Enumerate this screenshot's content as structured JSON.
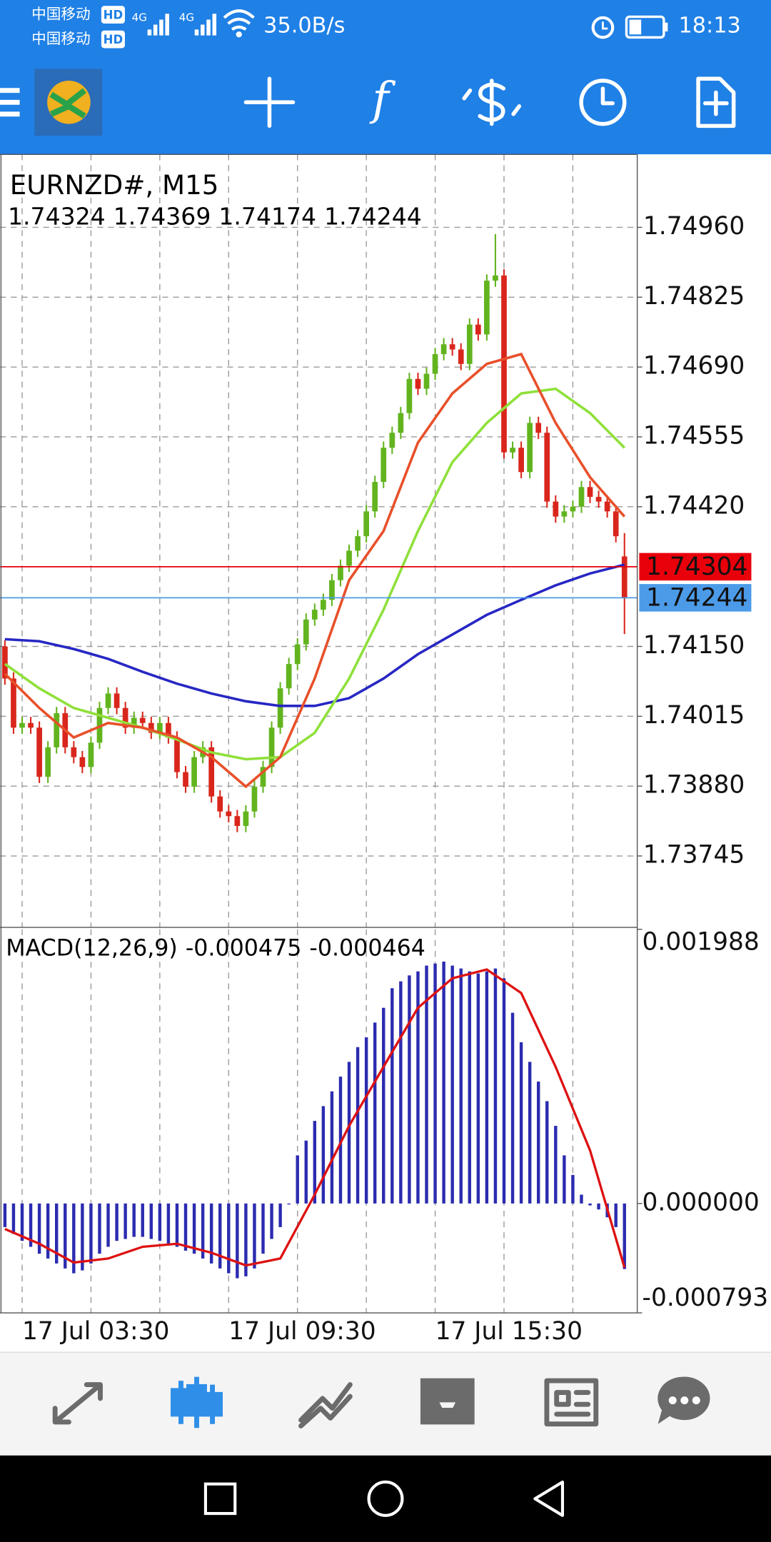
{
  "status_bar": {
    "carriers": [
      "中国移动",
      "中国移动"
    ],
    "badges": [
      "HD",
      "HD"
    ],
    "networks": [
      "4G",
      "4G"
    ],
    "speed": "35.0B/s",
    "time": "18:13"
  },
  "toolbar": {
    "indicator_icon": "f"
  },
  "chart_data": [
    {
      "type": "candlestick",
      "title": "EURNZD#, M15",
      "categories": [
        null,
        null,
        "17 Jul 03:30",
        null,
        null,
        null,
        null,
        null,
        null,
        null,
        null,
        null,
        null,
        null,
        null,
        null,
        null,
        null,
        null,
        null,
        null,
        null,
        null,
        null,
        null,
        null,
        "17 Jul 09:30",
        null,
        null,
        null,
        null,
        null,
        null,
        null,
        null,
        null,
        null,
        null,
        null,
        null,
        null,
        null,
        null,
        null,
        null,
        null,
        null,
        null,
        null,
        null,
        "17 Jul 15:30",
        null,
        null,
        null,
        null,
        null,
        null,
        null,
        null,
        null,
        null,
        null,
        null,
        null,
        null,
        null,
        null,
        null,
        null,
        null,
        null,
        null,
        null
      ],
      "open": [
        1.7415,
        1.74088,
        1.73993,
        1.74002,
        1.73993,
        1.73898,
        1.73955,
        1.74021,
        1.73955,
        1.73936,
        1.73917,
        1.73964,
        1.74031,
        1.74059,
        1.74031,
        1.73993,
        1.74012,
        1.74002,
        1.73983,
        1.74002,
        1.73974,
        1.73907,
        1.73879,
        1.73936,
        1.73955,
        1.7386,
        1.73831,
        1.73822,
        1.73803,
        1.73831,
        1.73879,
        1.73917,
        1.73993,
        1.74069,
        1.74116,
        1.74154,
        1.74202,
        1.74221,
        1.7424,
        1.74278,
        1.74306,
        1.74335,
        1.74363,
        1.74411,
        1.74468,
        1.74534,
        1.74563,
        1.74601,
        1.74667,
        1.74648,
        1.74677,
        1.74715,
        1.74734,
        1.74724,
        1.74696,
        1.74772,
        1.74753,
        1.74857,
        1.74867,
        1.74525,
        1.74534,
        1.74487,
        1.74582,
        1.74563,
        1.7443,
        1.74401,
        1.74411,
        1.7442,
        1.74458,
        1.74439,
        1.7443,
        1.74411,
        1.74324
      ],
      "high": [
        1.74162,
        1.741,
        1.74014,
        1.74014,
        1.74005,
        1.73967,
        1.74033,
        1.74033,
        1.73967,
        1.73948,
        1.73976,
        1.74043,
        1.74071,
        1.74071,
        1.74043,
        1.74024,
        1.74024,
        1.74014,
        1.74014,
        1.74014,
        1.73986,
        1.73919,
        1.73948,
        1.73967,
        1.73967,
        1.73872,
        1.73843,
        1.73834,
        1.73843,
        1.73891,
        1.73929,
        1.74005,
        1.74081,
        1.74128,
        1.74166,
        1.74214,
        1.74233,
        1.74252,
        1.7429,
        1.74318,
        1.74347,
        1.74375,
        1.74423,
        1.7448,
        1.74546,
        1.74575,
        1.74613,
        1.74679,
        1.74679,
        1.74689,
        1.74727,
        1.74746,
        1.74746,
        1.74736,
        1.74784,
        1.74784,
        1.74869,
        1.74947,
        1.74879,
        1.74546,
        1.74546,
        1.74594,
        1.74594,
        1.74575,
        1.74442,
        1.74423,
        1.74432,
        1.7447,
        1.7447,
        1.74451,
        1.74442,
        1.74423,
        1.74369
      ],
      "low": [
        1.74076,
        1.73981,
        1.73981,
        1.73981,
        1.73886,
        1.73886,
        1.73943,
        1.73943,
        1.73924,
        1.73905,
        1.73905,
        1.73952,
        1.74019,
        1.74019,
        1.73981,
        1.73981,
        1.7399,
        1.73971,
        1.73971,
        1.73962,
        1.73895,
        1.73867,
        1.73867,
        1.73924,
        1.73848,
        1.73819,
        1.7381,
        1.73791,
        1.73791,
        1.73819,
        1.73867,
        1.73905,
        1.73981,
        1.74057,
        1.74104,
        1.74142,
        1.7419,
        1.74209,
        1.74228,
        1.74266,
        1.74294,
        1.74323,
        1.74351,
        1.74399,
        1.74456,
        1.74522,
        1.74551,
        1.74589,
        1.74636,
        1.74636,
        1.74665,
        1.74703,
        1.74712,
        1.74684,
        1.74684,
        1.74741,
        1.74741,
        1.74845,
        1.74513,
        1.74513,
        1.74475,
        1.74475,
        1.74551,
        1.74418,
        1.74389,
        1.74389,
        1.74399,
        1.74408,
        1.74427,
        1.74418,
        1.74399,
        1.74351,
        1.74174
      ],
      "close": [
        1.74088,
        1.73993,
        1.74002,
        1.73993,
        1.73898,
        1.73955,
        1.74021,
        1.73955,
        1.73936,
        1.73917,
        1.73964,
        1.74031,
        1.74059,
        1.74031,
        1.73993,
        1.74012,
        1.74002,
        1.73983,
        1.74002,
        1.73974,
        1.73907,
        1.73879,
        1.73936,
        1.73955,
        1.7386,
        1.73831,
        1.73822,
        1.73803,
        1.73831,
        1.73879,
        1.73917,
        1.73993,
        1.74069,
        1.74116,
        1.74154,
        1.74202,
        1.74221,
        1.7424,
        1.74278,
        1.74306,
        1.74335,
        1.74363,
        1.74411,
        1.74468,
        1.74534,
        1.74563,
        1.74601,
        1.74667,
        1.74648,
        1.74677,
        1.74715,
        1.74734,
        1.74724,
        1.74696,
        1.74772,
        1.74753,
        1.74857,
        1.74867,
        1.74525,
        1.74534,
        1.74487,
        1.74582,
        1.74563,
        1.7443,
        1.74401,
        1.74411,
        1.7442,
        1.74458,
        1.74439,
        1.7443,
        1.74411,
        1.74363,
        1.74244
      ],
      "up_color": "#62b41e",
      "down_color": "#d9261c",
      "series": [
        {
          "color": "#2727c4",
          "x": [
            0,
            4,
            8,
            12,
            16,
            20,
            24,
            28,
            32,
            36,
            40,
            44,
            48,
            52,
            56,
            60,
            64,
            68,
            72
          ],
          "values": [
            1.74164,
            1.7416,
            1.74145,
            1.74126,
            1.74101,
            1.74078,
            1.74059,
            1.74044,
            1.74035,
            1.74035,
            1.7405,
            1.74088,
            1.74135,
            1.74173,
            1.74211,
            1.7424,
            1.74268,
            1.74291,
            1.74308
          ]
        },
        {
          "color": "#8fe03a",
          "x": [
            0,
            4,
            8,
            12,
            16,
            20,
            24,
            28,
            32,
            36,
            40,
            44,
            48,
            52,
            56,
            60,
            64,
            68,
            72
          ],
          "values": [
            1.74116,
            1.74069,
            1.74031,
            1.74012,
            1.73993,
            1.7397,
            1.73945,
            1.73932,
            1.73936,
            1.73983,
            1.74088,
            1.74221,
            1.74373,
            1.74506,
            1.74582,
            1.74639,
            1.74648,
            1.74601,
            1.74534
          ]
        },
        {
          "color": "#e8502a",
          "x": [
            0,
            4,
            8,
            12,
            16,
            20,
            24,
            28,
            32,
            36,
            40,
            44,
            48,
            52,
            56,
            60,
            64,
            68,
            72
          ],
          "values": [
            1.74097,
            1.74031,
            1.73974,
            1.74002,
            1.73993,
            1.73974,
            1.73936,
            1.73879,
            1.73936,
            1.74088,
            1.74278,
            1.74373,
            1.74544,
            1.74639,
            1.74696,
            1.74715,
            1.74582,
            1.74477,
            1.74401
          ]
        }
      ],
      "price_lines": [
        {
          "value": 1.74304,
          "color": "#e8000b"
        },
        {
          "value": 1.74244,
          "color": "#4c9be8"
        }
      ],
      "ylim": [
        1.73607,
        1.75101
      ],
      "yticks": [
        {
          "value": 1.7496,
          "label": "1.74960"
        },
        1.74825,
        {
          "value": 1.7469,
          "label": "1.74690"
        },
        1.74555,
        {
          "value": 1.7442,
          "label": "1.74420"
        },
        {
          "value": 1.7415,
          "label": "1.74150"
        },
        {
          "value": 1.74015,
          "label": "1.74015"
        },
        {
          "value": 1.7388,
          "label": "1.73880"
        },
        1.73745
      ],
      "grid": true
    },
    {
      "type": "macd",
      "title": "MACD(12,26,9)",
      "histogram": {
        "color": "#2b2bb0",
        "values": [
          -0.000171,
          -0.000221,
          -0.000271,
          -0.000314,
          -0.000364,
          -0.000399,
          -0.000435,
          -0.000471,
          -0.000506,
          -0.000485,
          -0.000435,
          -0.000364,
          -0.000314,
          -0.000271,
          -0.000257,
          -0.000242,
          -0.000242,
          -0.000257,
          -0.000271,
          -0.000292,
          -0.000314,
          -0.000342,
          -0.000364,
          -0.000399,
          -0.000435,
          -0.000471,
          -0.000506,
          -0.000542,
          -0.000528,
          -0.000471,
          -0.000364,
          -0.000257,
          -0.000171,
          -7e-06,
          0.000349,
          0.000456,
          0.000599,
          0.000706,
          0.000813,
          0.00092,
          0.001027,
          0.001134,
          0.001205,
          0.001312,
          0.001419,
          0.001561,
          0.001611,
          0.001654,
          0.001683,
          0.001725,
          0.00174,
          0.001754,
          0.001725,
          0.001704,
          0.001683,
          0.001668,
          0.001683,
          0.001704,
          0.001633,
          0.001383,
          0.001169,
          0.001027,
          0.000884,
          0.000742,
          0.000563,
          0.000349,
          0.000207,
          6.4e-05,
          -1.4e-05,
          -4.3e-05,
          -0.0001,
          -0.000171,
          -0.000475
        ]
      },
      "signal": {
        "color": "#dd1111",
        "x": [
          0,
          4,
          8,
          12,
          16,
          20,
          24,
          28,
          32,
          36,
          40,
          44,
          48,
          52,
          56,
          60,
          64,
          68,
          72
        ],
        "values": [
          -0.000185,
          -0.000292,
          -0.000428,
          -0.000399,
          -0.000314,
          -0.000292,
          -0.000357,
          -0.000449,
          -0.000399,
          6.4e-05,
          0.000563,
          0.000991,
          0.001419,
          0.001633,
          0.001697,
          0.001526,
          0.000991,
          0.000385,
          -0.000464
        ]
      },
      "ylim": [
        -0.000793,
        0.001988
      ],
      "yticks": [
        0.001988,
        {
          "value": 0,
          "label": "0.000000"
        },
        -0.000793
      ]
    }
  ]
}
